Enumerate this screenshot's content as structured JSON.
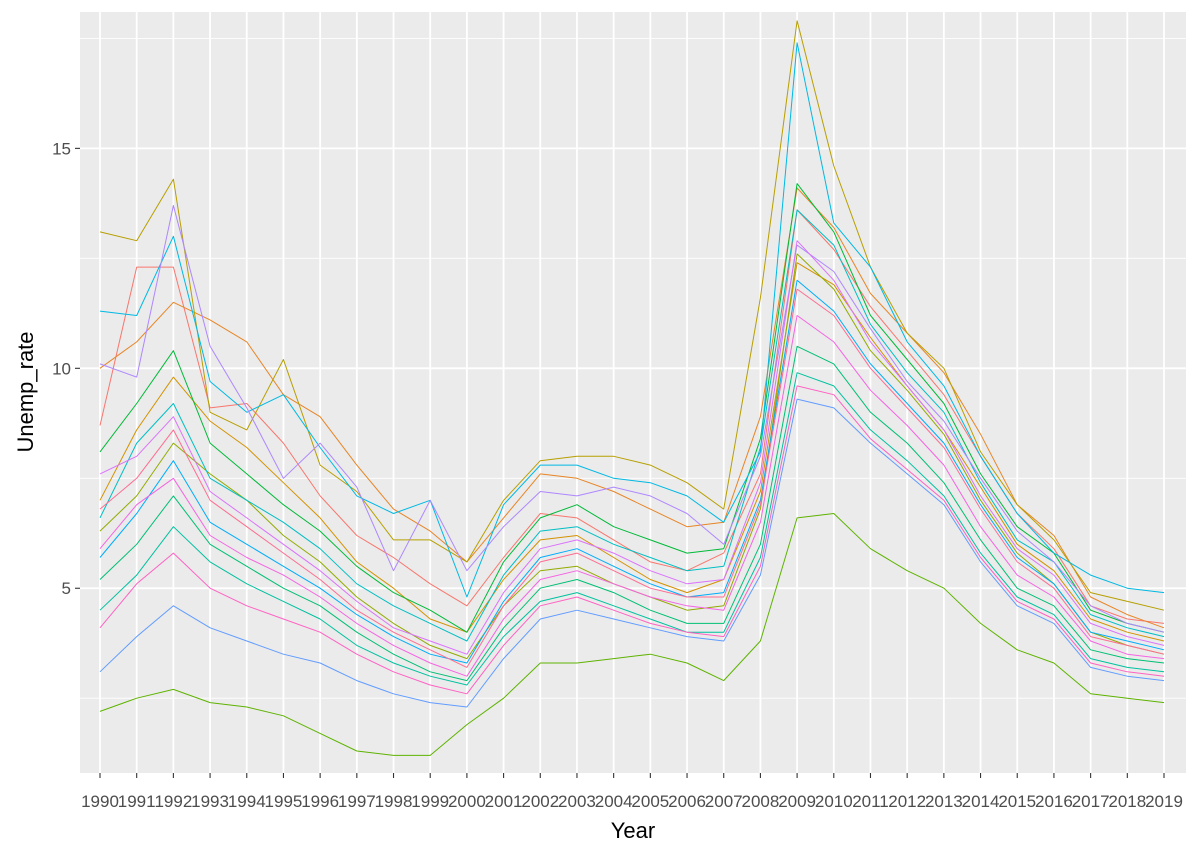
{
  "chart_data": {
    "type": "line",
    "title": "",
    "xlabel": "Year",
    "ylabel": "Unemp_rate",
    "x": [
      1990,
      1991,
      1992,
      1993,
      1994,
      1995,
      1996,
      1997,
      1998,
      1999,
      2000,
      2001,
      2002,
      2003,
      2004,
      2005,
      2006,
      2007,
      2008,
      2009,
      2010,
      2011,
      2012,
      2013,
      2014,
      2015,
      2016,
      2017,
      2018,
      2019
    ],
    "x_tick_labels": [
      "1990",
      "1991",
      "1992",
      "1993",
      "1994",
      "1995",
      "1996",
      "1997",
      "1998",
      "1999",
      "2000",
      "2001",
      "2002",
      "2003",
      "2004",
      "2005",
      "2006",
      "2007",
      "2008",
      "2009",
      "2010",
      "2011",
      "2012",
      "2013",
      "2014",
      "2015",
      "2016",
      "2017",
      "2018",
      "2019"
    ],
    "y_ticks": [
      5,
      10,
      15
    ],
    "y_tick_labels": [
      "5",
      "10",
      "15"
    ],
    "ylim": [
      0.8,
      18.1
    ],
    "grid": true,
    "legend": "none",
    "background": "#ebebeb",
    "grid_color": "#ffffff",
    "series": [
      {
        "color": "#F8766D",
        "values": [
          8.7,
          12.3,
          12.3,
          9.1,
          9.2,
          8.3,
          7.1,
          6.2,
          5.7,
          5.1,
          4.6,
          5.7,
          6.7,
          6.6,
          6.1,
          5.6,
          5.4,
          5.8,
          7.6,
          13.6,
          12.7,
          11.4,
          10.4,
          9.4,
          8.0,
          6.7,
          5.9,
          4.6,
          4.3,
          4.2
        ]
      },
      {
        "color": "#E88526",
        "values": [
          10.0,
          10.6,
          11.5,
          11.1,
          10.6,
          9.4,
          8.9,
          7.8,
          6.8,
          6.3,
          5.6,
          6.6,
          7.6,
          7.5,
          7.2,
          6.8,
          6.4,
          6.5,
          8.9,
          14.1,
          13.2,
          11.7,
          10.8,
          9.9,
          8.5,
          6.9,
          6.2,
          4.8,
          4.4,
          4.1
        ]
      },
      {
        "color": "#D39200",
        "values": [
          7.0,
          8.6,
          9.8,
          8.8,
          8.2,
          7.4,
          6.6,
          5.6,
          5.0,
          4.3,
          4.0,
          5.2,
          6.1,
          6.2,
          5.7,
          5.2,
          4.9,
          5.2,
          7.2,
          12.4,
          11.9,
          10.7,
          9.6,
          8.6,
          7.3,
          6.0,
          5.4,
          4.3,
          4.0,
          3.8
        ]
      },
      {
        "color": "#B79F00",
        "values": [
          13.1,
          12.9,
          14.3,
          9.0,
          8.6,
          10.2,
          7.8,
          7.2,
          6.1,
          6.1,
          5.6,
          7.0,
          7.9,
          8.0,
          8.0,
          7.8,
          7.4,
          6.8,
          11.6,
          17.9,
          14.6,
          12.3,
          10.8,
          10.0,
          8.1,
          6.9,
          6.1,
          4.9,
          4.7,
          4.5
        ]
      },
      {
        "color": "#93AA00",
        "values": [
          6.3,
          7.1,
          8.3,
          7.6,
          7.0,
          6.2,
          5.6,
          4.8,
          4.2,
          3.7,
          3.4,
          4.6,
          5.4,
          5.5,
          5.1,
          4.8,
          4.5,
          4.6,
          6.8,
          12.6,
          11.8,
          10.4,
          9.5,
          8.5,
          7.0,
          5.8,
          5.1,
          4.0,
          3.7,
          3.5
        ]
      },
      {
        "color": "#5EB300",
        "values": [
          2.2,
          2.5,
          2.7,
          2.4,
          2.3,
          2.1,
          1.7,
          1.3,
          1.2,
          1.2,
          1.9,
          2.5,
          3.3,
          3.3,
          3.4,
          3.5,
          3.3,
          2.9,
          3.8,
          6.6,
          6.7,
          5.9,
          5.4,
          5.0,
          4.2,
          3.6,
          3.3,
          2.6,
          2.5,
          2.4
        ]
      },
      {
        "color": "#00BA38",
        "values": [
          8.1,
          9.2,
          10.4,
          8.3,
          7.6,
          6.9,
          6.3,
          5.5,
          4.9,
          4.5,
          4.0,
          5.6,
          6.6,
          6.9,
          6.4,
          6.1,
          5.8,
          5.9,
          8.4,
          14.2,
          13.1,
          11.2,
          10.2,
          9.2,
          7.6,
          6.4,
          5.8,
          4.5,
          4.2,
          4.0
        ]
      },
      {
        "color": "#00BF74",
        "values": [
          5.2,
          6.0,
          7.1,
          6.0,
          5.5,
          5.0,
          4.6,
          4.0,
          3.5,
          3.1,
          2.9,
          4.1,
          5.0,
          5.2,
          4.9,
          4.5,
          4.2,
          4.2,
          6.0,
          10.5,
          10.1,
          9.0,
          8.3,
          7.4,
          6.1,
          5.0,
          4.6,
          3.6,
          3.4,
          3.3
        ]
      },
      {
        "color": "#00C19F",
        "values": [
          4.5,
          5.3,
          6.4,
          5.6,
          5.1,
          4.7,
          4.3,
          3.7,
          3.3,
          3.0,
          2.8,
          3.9,
          4.7,
          4.9,
          4.6,
          4.3,
          4.0,
          4.0,
          5.7,
          9.9,
          9.6,
          8.6,
          7.9,
          7.1,
          5.8,
          4.8,
          4.4,
          3.4,
          3.2,
          3.1
        ]
      },
      {
        "color": "#00BFC4",
        "values": [
          6.6,
          8.3,
          9.2,
          7.5,
          7.0,
          6.5,
          5.9,
          5.1,
          4.6,
          4.2,
          3.8,
          5.3,
          6.3,
          6.4,
          6.0,
          5.7,
          5.4,
          5.5,
          8.2,
          13.6,
          12.8,
          11.0,
          9.9,
          9.0,
          7.4,
          6.1,
          5.6,
          4.4,
          4.1,
          3.9
        ]
      },
      {
        "color": "#00B9E3",
        "values": [
          11.3,
          11.2,
          13.0,
          9.7,
          9.0,
          9.4,
          8.2,
          7.1,
          6.7,
          7.0,
          4.8,
          6.9,
          7.8,
          7.8,
          7.5,
          7.4,
          7.1,
          6.5,
          8.1,
          17.4,
          13.3,
          12.3,
          10.6,
          9.6,
          8.0,
          6.7,
          5.8,
          5.3,
          5.0,
          4.9
        ]
      },
      {
        "color": "#00ADFA",
        "values": [
          5.7,
          6.7,
          7.9,
          6.5,
          6.0,
          5.5,
          5.0,
          4.4,
          3.9,
          3.5,
          3.3,
          4.7,
          5.7,
          5.9,
          5.5,
          5.1,
          4.8,
          4.9,
          7.0,
          12.0,
          11.3,
          10.1,
          9.2,
          8.3,
          6.9,
          5.7,
          5.1,
          4.0,
          3.8,
          3.6
        ]
      },
      {
        "color": "#619CFF",
        "values": [
          3.1,
          3.9,
          4.6,
          4.1,
          3.8,
          3.5,
          3.3,
          2.9,
          2.6,
          2.4,
          2.3,
          3.4,
          4.3,
          4.5,
          4.3,
          4.1,
          3.9,
          3.8,
          5.3,
          9.3,
          9.1,
          8.3,
          7.6,
          6.9,
          5.6,
          4.6,
          4.2,
          3.2,
          3.0,
          2.9
        ]
      },
      {
        "color": "#AE87FF",
        "values": [
          10.1,
          9.8,
          13.7,
          10.5,
          9.1,
          7.5,
          8.3,
          7.3,
          5.4,
          7.0,
          5.4,
          6.4,
          7.2,
          7.1,
          7.3,
          7.1,
          6.7,
          6.0,
          8.0,
          12.8,
          12.2,
          10.9,
          9.7,
          8.8,
          7.5,
          6.3,
          5.6,
          4.6,
          4.2,
          4.0
        ]
      },
      {
        "color": "#DB72FB",
        "values": [
          7.6,
          8.0,
          8.9,
          7.2,
          6.6,
          6.0,
          5.4,
          4.7,
          4.1,
          3.8,
          3.5,
          4.9,
          5.9,
          6.1,
          5.8,
          5.4,
          5.1,
          5.2,
          7.4,
          12.9,
          12.0,
          10.6,
          9.6,
          8.6,
          7.1,
          5.9,
          5.3,
          4.2,
          3.9,
          3.7
        ]
      },
      {
        "color": "#F564E3",
        "values": [
          5.9,
          6.9,
          7.5,
          6.2,
          5.7,
          5.3,
          4.8,
          4.2,
          3.7,
          3.3,
          3.0,
          4.3,
          5.2,
          5.4,
          5.1,
          4.8,
          4.6,
          4.5,
          6.5,
          11.2,
          10.6,
          9.5,
          8.7,
          7.8,
          6.4,
          5.3,
          4.8,
          3.8,
          3.5,
          3.4
        ]
      },
      {
        "color": "#FF61C3",
        "values": [
          4.1,
          5.1,
          5.8,
          5.0,
          4.6,
          4.3,
          4.0,
          3.5,
          3.1,
          2.8,
          2.6,
          3.7,
          4.6,
          4.8,
          4.5,
          4.2,
          4.0,
          3.9,
          5.5,
          9.6,
          9.4,
          8.4,
          7.7,
          7.0,
          5.7,
          4.7,
          4.3,
          3.3,
          3.1,
          3.0
        ]
      },
      {
        "color": "#FF6C91",
        "values": [
          6.8,
          7.5,
          8.6,
          7.0,
          6.4,
          5.8,
          5.2,
          4.5,
          4.0,
          3.6,
          3.2,
          4.6,
          5.6,
          5.8,
          5.4,
          5.0,
          4.8,
          4.8,
          6.9,
          11.8,
          11.2,
          10.0,
          9.1,
          8.2,
          6.8,
          5.6,
          5.0,
          3.9,
          3.7,
          3.5
        ]
      }
    ]
  }
}
